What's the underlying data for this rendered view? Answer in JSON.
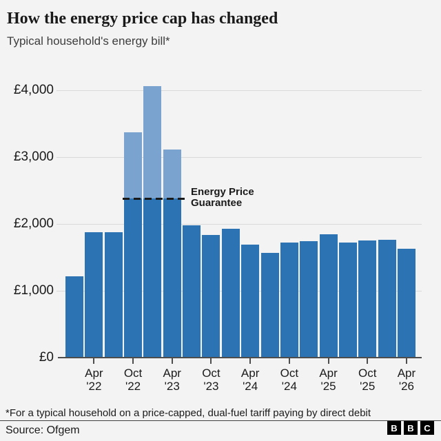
{
  "header": {
    "title": "How the energy price cap has changed",
    "subtitle": "Typical household's energy bill*"
  },
  "chart_data": {
    "type": "bar",
    "title": "How the energy price cap has changed",
    "subtitle": "Typical household's energy bill*",
    "unit": "GBP per year for a typical household",
    "ylim": [
      0,
      4300
    ],
    "grid": "horizontal",
    "legend": "none",
    "y_ticks": [
      {
        "value": 0,
        "label": "£0"
      },
      {
        "value": 1000,
        "label": "£1,000"
      },
      {
        "value": 2000,
        "label": "£2,000"
      },
      {
        "value": 3000,
        "label": "£3,000"
      },
      {
        "value": 4000,
        "label": "£4,000"
      }
    ],
    "x_tick_labels": [
      {
        "month": "Apr",
        "year": "'22"
      },
      {
        "month": "Oct",
        "year": "'22"
      },
      {
        "month": "Apr",
        "year": "'23"
      },
      {
        "month": "Oct",
        "year": "'23"
      },
      {
        "month": "Apr",
        "year": "'24"
      },
      {
        "month": "Oct",
        "year": "'24"
      },
      {
        "month": "Apr",
        "year": "'25"
      },
      {
        "month": "Oct",
        "year": "'25"
      },
      {
        "month": "Apr",
        "year": "'26"
      }
    ],
    "bars": [
      {
        "period": "Jan '22",
        "cap": 1216
      },
      {
        "period": "Apr '22",
        "cap": 1880
      },
      {
        "period": "Jul '22",
        "cap": 1880
      },
      {
        "period": "Oct '22",
        "cap": 3372,
        "paid_under_guarantee": 2380
      },
      {
        "period": "Jan '23",
        "cap": 4059,
        "paid_under_guarantee": 2380
      },
      {
        "period": "Apr '23",
        "cap": 3116,
        "paid_under_guarantee": 2380
      },
      {
        "period": "Jul '23",
        "cap": 1976
      },
      {
        "period": "Oct '23",
        "cap": 1834
      },
      {
        "period": "Jan '24",
        "cap": 1928
      },
      {
        "period": "Apr '24",
        "cap": 1690
      },
      {
        "period": "Jul '24",
        "cap": 1568
      },
      {
        "period": "Oct '24",
        "cap": 1717
      },
      {
        "period": "Jan '25",
        "cap": 1738
      },
      {
        "period": "Apr '25",
        "cap": 1849
      },
      {
        "period": "Jul '25",
        "cap": 1720
      },
      {
        "period": "Oct '25",
        "cap": 1755
      },
      {
        "period": "Jan '26",
        "cap": 1758
      },
      {
        "period": "Apr '26",
        "cap": 1634
      }
    ],
    "annotation": {
      "line1": "Energy Price",
      "line2": "Guarantee",
      "value": 2380,
      "applies_from": "Oct '22",
      "applies_to": "Apr '23"
    }
  },
  "colors": {
    "background": "#f3f3f3",
    "bar": "#2b73b2",
    "bar_above_guarantee": "#7ba3cf",
    "dashed_line": "#1a1a1a",
    "gridline": "#d9d9d9",
    "axis": "#4d4d4d",
    "text": "#1a1a1a"
  },
  "footer": {
    "footnote": "*For a typical household on a price-capped, dual-fuel tariff paying by direct debit",
    "source": "Source: Ofgem",
    "logo_letters": [
      "B",
      "B",
      "C"
    ]
  }
}
